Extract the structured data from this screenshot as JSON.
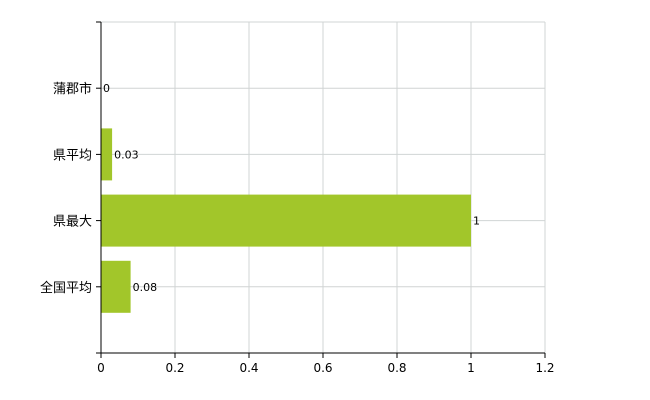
{
  "chart_data": {
    "type": "bar",
    "orientation": "horizontal",
    "categories": [
      "蒲郡市",
      "県平均",
      "県最大",
      "全国平均"
    ],
    "values": [
      0,
      0.03,
      1,
      0.08
    ],
    "data_labels": [
      "0",
      "0.03",
      "1",
      "0.08"
    ],
    "xlim": [
      0,
      1.2
    ],
    "xticks": [
      0,
      0.2,
      0.4,
      0.6,
      0.8,
      1,
      1.2
    ],
    "xtick_labels": [
      "0",
      "0.2",
      "0.4",
      "0.6",
      "0.8",
      "1",
      "1.2"
    ],
    "grid": true,
    "bar_color": "#a2c62a",
    "grid_color": "#d0d4d4"
  }
}
